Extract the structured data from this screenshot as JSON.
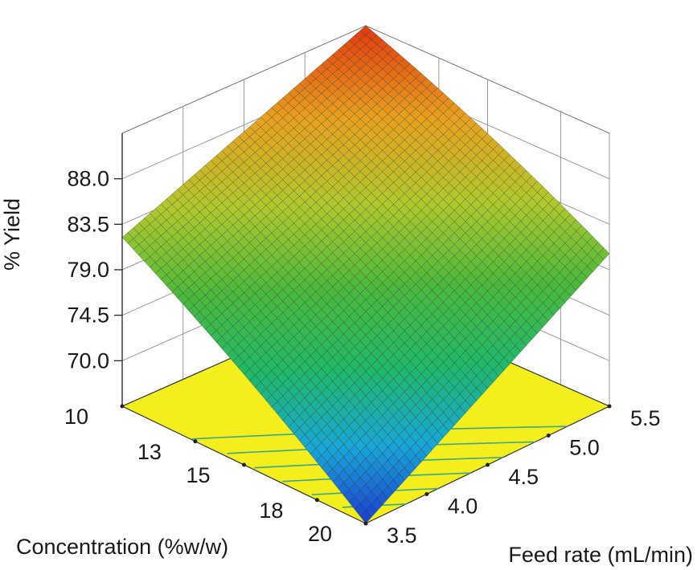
{
  "chart_data": {
    "type": "surface3d",
    "title": "",
    "zlabel": "% Yield",
    "xlabel": "Concentration (%w/w)",
    "ylabel": "Feed rate (mL/min)",
    "z_ticks": [
      "88.0",
      "83.5",
      "79.0",
      "74.5",
      "70.0"
    ],
    "z_tick_values": [
      88.0,
      83.5,
      79.0,
      74.5,
      70.0
    ],
    "x_ticks": [
      "10",
      "13",
      "15",
      "18",
      "20"
    ],
    "x_tick_values": [
      10,
      13,
      15,
      18,
      20
    ],
    "y_ticks": [
      "3.5",
      "4.0",
      "4.5",
      "5.0",
      "5.5"
    ],
    "y_tick_values": [
      3.5,
      4.0,
      4.5,
      5.0,
      5.5
    ],
    "xlim": [
      10,
      20
    ],
    "ylim": [
      3.5,
      5.5
    ],
    "zlim": [
      65.5,
      92.5
    ],
    "corner_values": [
      {
        "concentration": 10,
        "feed_rate": 3.5,
        "yield": 82.2
      },
      {
        "concentration": 10,
        "feed_rate": 5.5,
        "yield": 92.5
      },
      {
        "concentration": 20,
        "feed_rate": 3.5,
        "yield": 65.5
      },
      {
        "concentration": 20,
        "feed_rate": 5.5,
        "yield": 80.6
      }
    ],
    "floor_color": "#f4ee1c",
    "colormap": [
      "#1c3cd0",
      "#1aa6d8",
      "#22b86a",
      "#4cb83c",
      "#b0c82e",
      "#e8a020",
      "#e03a10"
    ]
  }
}
